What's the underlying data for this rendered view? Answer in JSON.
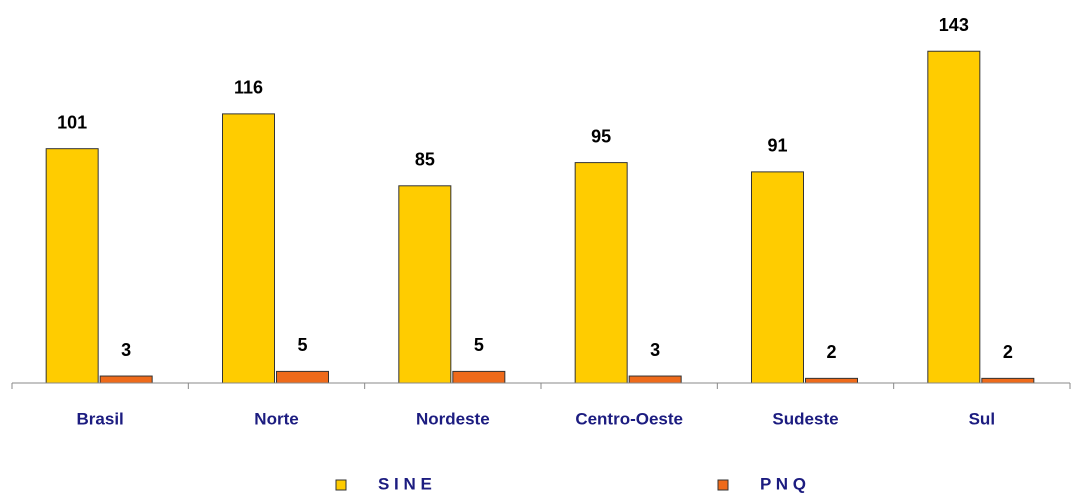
{
  "chart_data": {
    "type": "bar",
    "categories": [
      "Brasil",
      "Norte",
      "Nordeste",
      "Centro-Oeste",
      "Sudeste",
      "Sul"
    ],
    "series": [
      {
        "name": "S I N E",
        "color": "#ffcc00",
        "values": [
          101,
          116,
          85,
          95,
          91,
          143
        ]
      },
      {
        "name": "P N Q",
        "color": "#ee6a1a",
        "values": [
          3,
          5,
          5,
          3,
          2,
          2
        ]
      }
    ]
  }
}
